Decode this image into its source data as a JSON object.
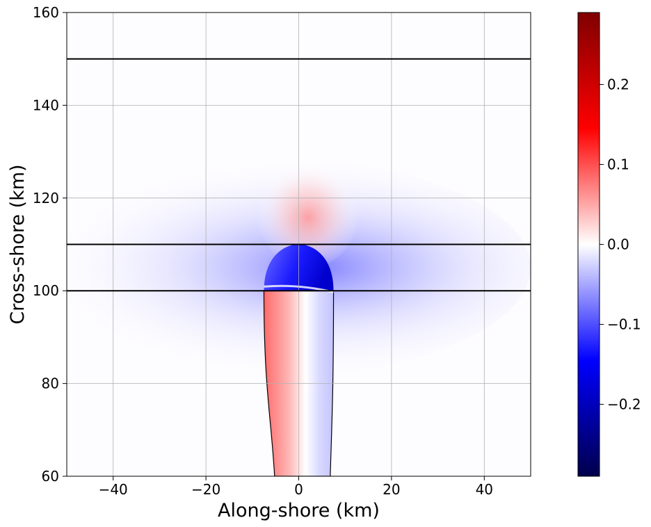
{
  "chart_data": {
    "type": "heatmap",
    "xlabel": "Along-shore (km)",
    "ylabel": "Cross-shore (km)",
    "xlim": [
      -50,
      50
    ],
    "ylim": [
      60,
      160
    ],
    "x_ticks": [
      -40,
      -20,
      0,
      20,
      40
    ],
    "x_tick_labels": [
      "−40",
      "−20",
      "0",
      "20",
      "40"
    ],
    "y_ticks": [
      60,
      80,
      100,
      120,
      140,
      160
    ],
    "y_tick_labels": [
      "60",
      "80",
      "100",
      "120",
      "140",
      "160"
    ],
    "grid": true,
    "horizontal_lines_y": [
      100,
      110,
      150
    ],
    "colormap": "seismic",
    "colorbar": {
      "range": [
        -0.29,
        0.29
      ],
      "ticks": [
        -0.2,
        -0.1,
        0.0,
        0.1,
        0.2
      ],
      "tick_labels": [
        "−0.2",
        "−0.1",
        "0.0",
        "0.1",
        "0.2"
      ]
    },
    "features": [
      {
        "kind": "channel",
        "x_range": [
          -7.5,
          7.5
        ],
        "y_range": [
          60,
          100
        ],
        "left_value": 0.13,
        "right_value": -0.07
      },
      {
        "kind": "cap",
        "x_range": [
          -7.5,
          7.5
        ],
        "y_range": [
          100,
          110
        ],
        "value": -0.2
      },
      {
        "kind": "lobe",
        "center": [
          2,
          117
        ],
        "value": 0.06
      },
      {
        "kind": "band",
        "x_range": [
          -50,
          50
        ],
        "y_range": [
          100,
          110
        ],
        "value": -0.05
      }
    ],
    "colors": {
      "colormap_stops": [
        "#00004c",
        "#0000ff",
        "#ffffff",
        "#ff0000",
        "#800000"
      ],
      "grid": "#b0b0b0",
      "lines": "#000000"
    }
  }
}
